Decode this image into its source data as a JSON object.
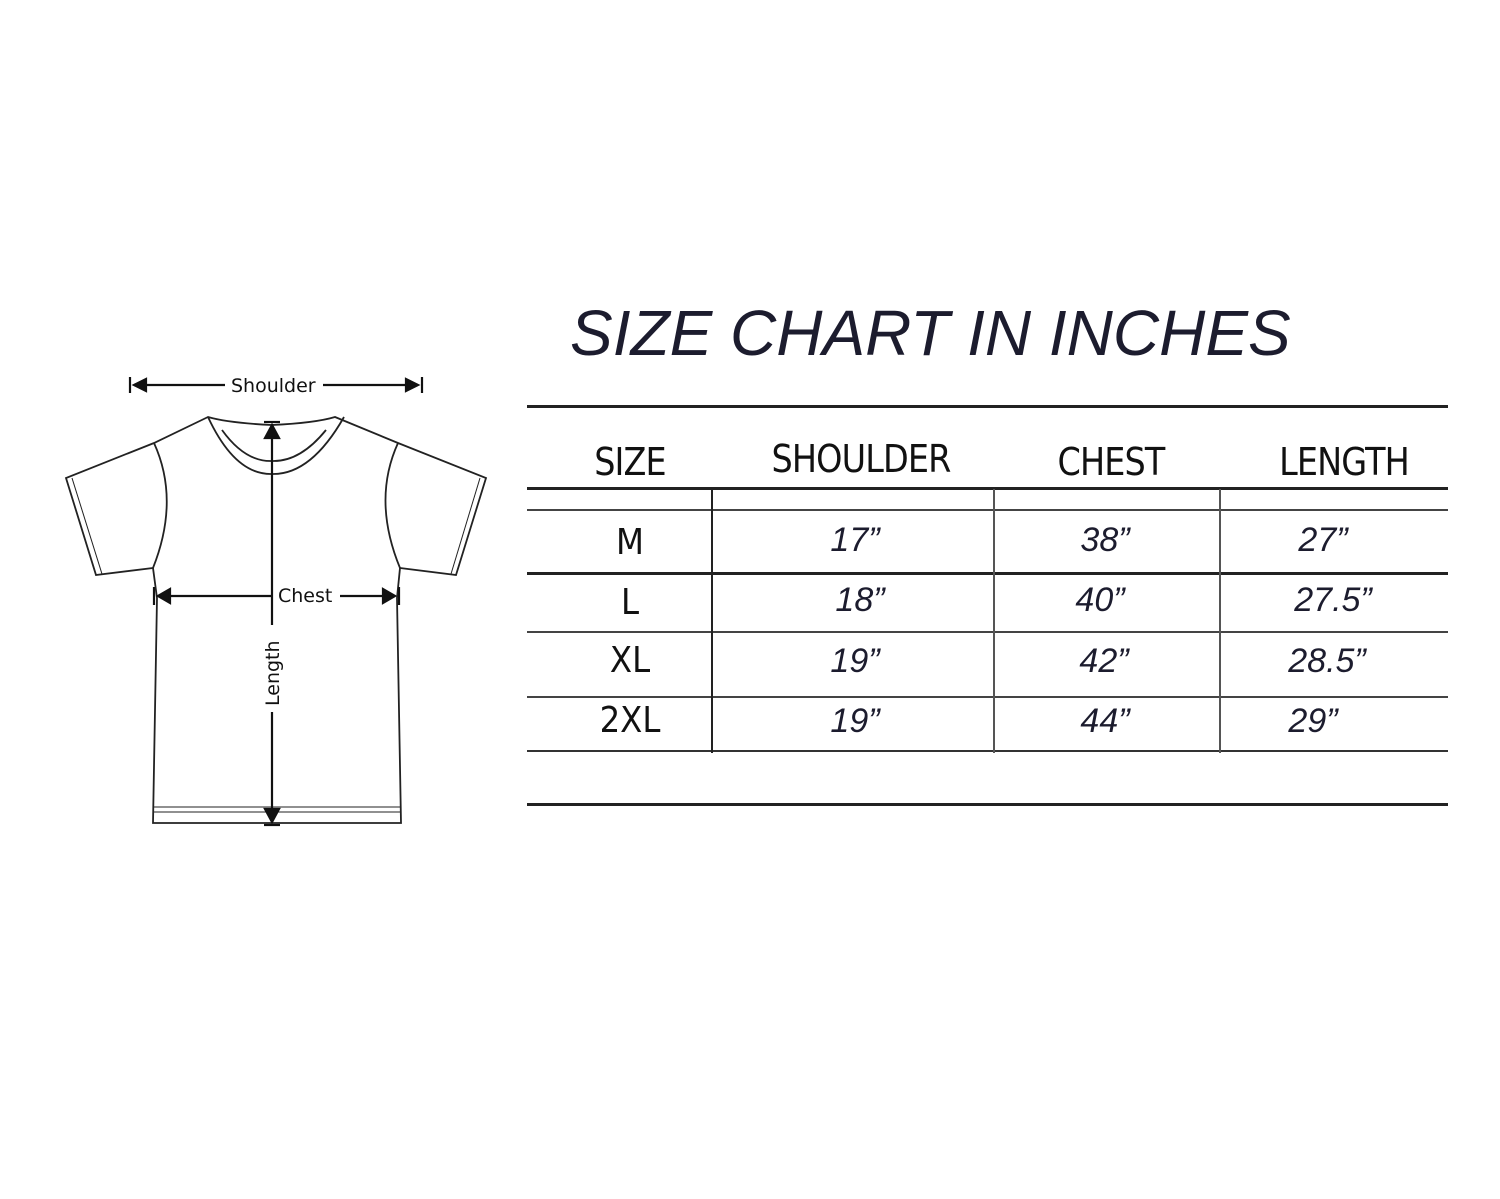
{
  "title": "SIZE CHART IN INCHES",
  "diagram": {
    "labels": {
      "shoulder": "Shoulder",
      "chest": "Chest",
      "length": "Length"
    }
  },
  "table": {
    "headers": [
      "SIZE",
      "SHOULDER",
      "CHEST",
      "LENGTH"
    ],
    "rows": [
      {
        "size": "M",
        "shoulder": "17”",
        "chest": "38”",
        "length": "27”"
      },
      {
        "size": "L",
        "shoulder": "18”",
        "chest": "40”",
        "length": "27.5”"
      },
      {
        "size": "XL",
        "shoulder": "19”",
        "chest": "42”",
        "length": "28.5”"
      },
      {
        "size": "2XL",
        "shoulder": "19”",
        "chest": "44”",
        "length": "29”"
      }
    ]
  },
  "colors": {
    "text": "#1c1c2e",
    "lines": "#222222"
  }
}
